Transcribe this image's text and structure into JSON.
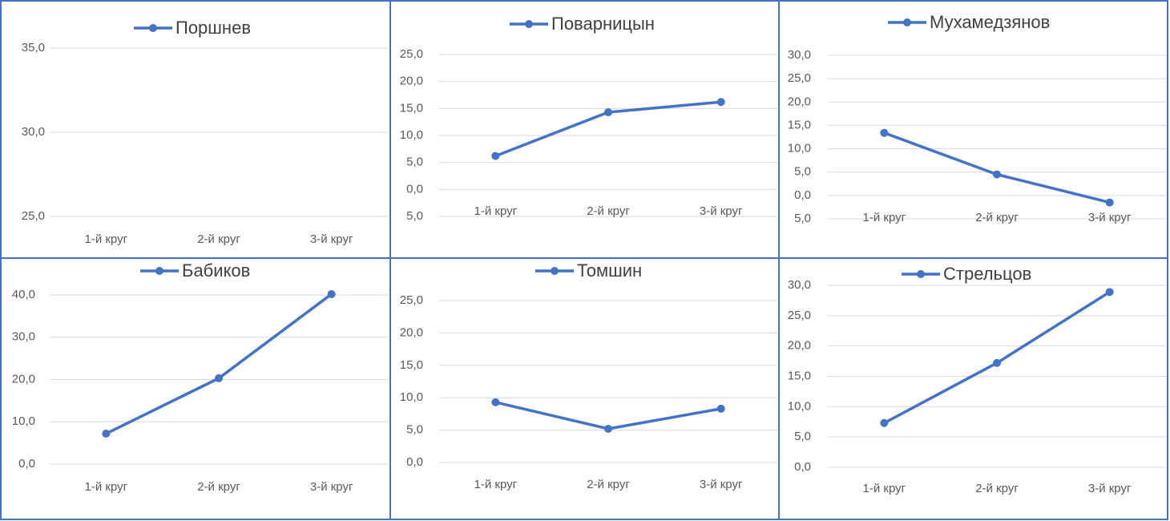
{
  "chart_data": [
    {
      "type": "line",
      "categories": [
        "1-й круг",
        "2-й круг",
        "3-й круг"
      ],
      "series": [
        {
          "name": "Поршнев",
          "color": "#4472c4",
          "values": [
            null,
            null,
            null
          ]
        }
      ],
      "ylim": [
        25,
        35
      ],
      "yticks": [
        {
          "value": 25,
          "label": "25,0"
        },
        {
          "value": 30,
          "label": "30,0"
        },
        {
          "value": 35,
          "label": "35,0"
        }
      ],
      "grid": true
    },
    {
      "type": "line",
      "categories": [
        "1-й круг",
        "2-й круг",
        "3-й круг"
      ],
      "series": [
        {
          "name": "Поварницын",
          "color": "#4472c4",
          "values": [
            6.2,
            14.3,
            16.2
          ]
        }
      ],
      "ylim": [
        -5,
        25
      ],
      "negative_tick_color": "#ff0000",
      "yticks": [
        {
          "value": -5,
          "label": "5,0"
        },
        {
          "value": 0,
          "label": "0,0"
        },
        {
          "value": 5,
          "label": "5,0"
        },
        {
          "value": 10,
          "label": "10,0"
        },
        {
          "value": 15,
          "label": "15,0"
        },
        {
          "value": 20,
          "label": "20,0"
        },
        {
          "value": 25,
          "label": "25,0"
        }
      ],
      "grid": true
    },
    {
      "type": "line",
      "categories": [
        "1-й круг",
        "2-й круг",
        "3-й круг"
      ],
      "series": [
        {
          "name": "Мухамедзянов",
          "color": "#4472c4",
          "values": [
            13.4,
            4.5,
            -1.5
          ]
        }
      ],
      "ylim": [
        -5,
        30
      ],
      "negative_tick_color": "#ff0000",
      "yticks": [
        {
          "value": -5,
          "label": "5,0"
        },
        {
          "value": 0,
          "label": "0,0"
        },
        {
          "value": 5,
          "label": "5,0"
        },
        {
          "value": 10,
          "label": "10,0"
        },
        {
          "value": 15,
          "label": "15,0"
        },
        {
          "value": 20,
          "label": "20,0"
        },
        {
          "value": 25,
          "label": "25,0"
        },
        {
          "value": 30,
          "label": "30,0"
        }
      ],
      "grid": true
    },
    {
      "type": "line",
      "categories": [
        "1-й круг",
        "2-й круг",
        "3-й круг"
      ],
      "series": [
        {
          "name": "Бабиков",
          "color": "#4472c4",
          "values": [
            7.2,
            20.3,
            40.2
          ]
        }
      ],
      "ylim": [
        0,
        40
      ],
      "yticks": [
        {
          "value": 0,
          "label": "0,0"
        },
        {
          "value": 10,
          "label": "10,0"
        },
        {
          "value": 20,
          "label": "20,0"
        },
        {
          "value": 30,
          "label": "30,0"
        },
        {
          "value": 40,
          "label": "40,0"
        }
      ],
      "grid": true
    },
    {
      "type": "line",
      "categories": [
        "1-й круг",
        "2-й круг",
        "3-й круг"
      ],
      "series": [
        {
          "name": "Томшин",
          "color": "#4472c4",
          "values": [
            9.3,
            5.2,
            8.3
          ]
        }
      ],
      "ylim": [
        0,
        25
      ],
      "yticks": [
        {
          "value": 0,
          "label": "0,0"
        },
        {
          "value": 5,
          "label": "5,0"
        },
        {
          "value": 10,
          "label": "10,0"
        },
        {
          "value": 15,
          "label": "15,0"
        },
        {
          "value": 20,
          "label": "20,0"
        },
        {
          "value": 25,
          "label": "25,0"
        }
      ],
      "grid": true
    },
    {
      "type": "line",
      "categories": [
        "1-й круг",
        "2-й круг",
        "3-й круг"
      ],
      "series": [
        {
          "name": "Стрельцов",
          "color": "#4472c4",
          "values": [
            7.3,
            17.2,
            28.9
          ]
        }
      ],
      "ylim": [
        0,
        30
      ],
      "yticks": [
        {
          "value": 0,
          "label": "0,0"
        },
        {
          "value": 5,
          "label": "5,0"
        },
        {
          "value": 10,
          "label": "10,0"
        },
        {
          "value": 15,
          "label": "15,0"
        },
        {
          "value": 20,
          "label": "20,0"
        },
        {
          "value": 25,
          "label": "25,0"
        },
        {
          "value": 30,
          "label": "30,0"
        }
      ],
      "grid": true
    }
  ]
}
